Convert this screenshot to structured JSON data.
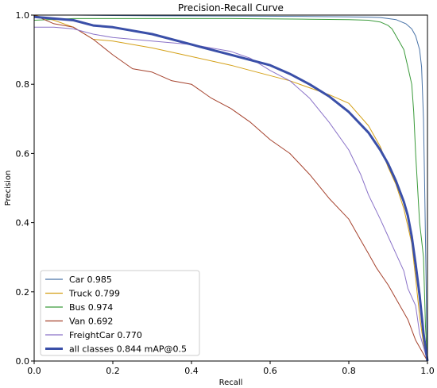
{
  "chart_data": {
    "type": "line",
    "title": "Precision-Recall Curve",
    "xlabel": "Recall",
    "ylabel": "Precision",
    "xlim": [
      0,
      1
    ],
    "ylim": [
      0,
      1
    ],
    "xticks": [
      "0.0",
      "0.2",
      "0.4",
      "0.6",
      "0.8",
      "1.0"
    ],
    "yticks": [
      "0.0",
      "0.2",
      "0.4",
      "0.6",
      "0.8",
      "1.0"
    ],
    "grid": false,
    "legend_position": "lower-left",
    "series": [
      {
        "name": "Car 0.985",
        "color": "#4a74a8",
        "x": [
          0.0,
          0.1,
          0.3,
          0.5,
          0.7,
          0.8,
          0.85,
          0.88,
          0.9,
          0.92,
          0.93,
          0.945,
          0.96,
          0.97,
          0.98,
          0.985,
          0.99,
          0.993,
          0.995,
          0.997,
          0.998,
          1.0
        ],
        "y": [
          1.0,
          1.0,
          0.998,
          0.997,
          0.996,
          0.995,
          0.994,
          0.993,
          0.99,
          0.987,
          0.982,
          0.975,
          0.96,
          0.94,
          0.9,
          0.85,
          0.7,
          0.5,
          0.35,
          0.2,
          0.1,
          0.0
        ]
      },
      {
        "name": "Truck 0.799",
        "color": "#d4a017",
        "x": [
          0.0,
          0.05,
          0.1,
          0.15,
          0.2,
          0.3,
          0.4,
          0.5,
          0.55,
          0.6,
          0.65,
          0.7,
          0.75,
          0.8,
          0.85,
          0.88,
          0.9,
          0.92,
          0.94,
          0.95,
          0.96,
          0.97,
          0.98,
          0.99,
          1.0
        ],
        "y": [
          1.0,
          0.985,
          0.965,
          0.93,
          0.925,
          0.905,
          0.88,
          0.855,
          0.84,
          0.825,
          0.81,
          0.79,
          0.77,
          0.745,
          0.68,
          0.62,
          0.56,
          0.51,
          0.44,
          0.39,
          0.34,
          0.24,
          0.13,
          0.05,
          0.0
        ]
      },
      {
        "name": "Bus 0.974",
        "color": "#3a9a3a",
        "x": [
          0.0,
          0.1,
          0.3,
          0.5,
          0.7,
          0.8,
          0.85,
          0.88,
          0.9,
          0.91,
          0.925,
          0.94,
          0.95,
          0.96,
          0.965,
          0.97,
          0.975,
          0.98,
          0.985,
          0.99,
          0.995,
          1.0
        ],
        "y": [
          0.985,
          0.99,
          0.99,
          0.99,
          0.988,
          0.987,
          0.985,
          0.98,
          0.97,
          0.96,
          0.93,
          0.9,
          0.85,
          0.8,
          0.72,
          0.6,
          0.5,
          0.4,
          0.35,
          0.3,
          0.1,
          0.0
        ]
      },
      {
        "name": "Van 0.692",
        "color": "#a5422d",
        "x": [
          0.0,
          0.05,
          0.1,
          0.15,
          0.2,
          0.25,
          0.3,
          0.35,
          0.4,
          0.45,
          0.5,
          0.55,
          0.6,
          0.65,
          0.7,
          0.75,
          0.8,
          0.83,
          0.85,
          0.87,
          0.9,
          0.92,
          0.95,
          0.97,
          0.99,
          1.0
        ],
        "y": [
          1.0,
          0.975,
          0.965,
          0.93,
          0.885,
          0.845,
          0.835,
          0.81,
          0.8,
          0.76,
          0.73,
          0.69,
          0.64,
          0.6,
          0.54,
          0.47,
          0.41,
          0.35,
          0.31,
          0.27,
          0.22,
          0.18,
          0.12,
          0.06,
          0.02,
          0.0
        ]
      },
      {
        "name": "FreightCar 0.770",
        "color": "#8a72c8",
        "x": [
          0.0,
          0.05,
          0.1,
          0.15,
          0.2,
          0.3,
          0.4,
          0.5,
          0.55,
          0.6,
          0.65,
          0.7,
          0.75,
          0.8,
          0.83,
          0.85,
          0.88,
          0.9,
          0.92,
          0.94,
          0.95,
          0.97,
          0.98,
          1.0
        ],
        "y": [
          0.965,
          0.965,
          0.96,
          0.945,
          0.935,
          0.925,
          0.915,
          0.895,
          0.875,
          0.84,
          0.81,
          0.76,
          0.69,
          0.61,
          0.54,
          0.48,
          0.41,
          0.36,
          0.31,
          0.26,
          0.21,
          0.16,
          0.08,
          0.0
        ]
      },
      {
        "name": "all classes 0.844 mAP@0.5",
        "color": "#3a4fa8",
        "x": [
          0.0,
          0.05,
          0.1,
          0.15,
          0.2,
          0.3,
          0.4,
          0.5,
          0.6,
          0.65,
          0.7,
          0.75,
          0.8,
          0.85,
          0.88,
          0.9,
          0.92,
          0.94,
          0.95,
          0.96,
          0.97,
          0.98,
          0.99,
          1.0
        ],
        "y": [
          0.995,
          0.99,
          0.985,
          0.97,
          0.965,
          0.945,
          0.915,
          0.885,
          0.855,
          0.83,
          0.8,
          0.765,
          0.72,
          0.66,
          0.61,
          0.57,
          0.52,
          0.46,
          0.42,
          0.36,
          0.28,
          0.19,
          0.08,
          0.0
        ]
      }
    ]
  }
}
